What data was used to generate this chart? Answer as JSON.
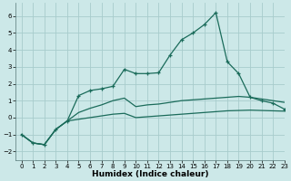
{
  "background_color": "#cce8e8",
  "grid_color": "#a8cccc",
  "line_color": "#1a6b5a",
  "x_label": "Humidex (Indice chaleur)",
  "xlim": [
    -0.5,
    23
  ],
  "ylim": [
    -2.5,
    6.8
  ],
  "yticks": [
    -2,
    -1,
    0,
    1,
    2,
    3,
    4,
    5,
    6
  ],
  "xticks": [
    0,
    1,
    2,
    3,
    4,
    5,
    6,
    7,
    8,
    9,
    10,
    11,
    12,
    13,
    14,
    15,
    16,
    17,
    18,
    19,
    20,
    21,
    22,
    23
  ],
  "series_peaked_x": [
    0,
    1,
    2,
    3,
    4,
    5,
    6,
    7,
    8,
    9,
    10,
    11,
    12,
    13,
    14,
    15,
    16,
    17,
    18,
    19,
    20,
    21,
    22,
    23
  ],
  "series_peaked_y": [
    -1.0,
    -1.5,
    -1.6,
    -0.7,
    -0.2,
    1.3,
    1.6,
    1.7,
    1.85,
    2.85,
    2.6,
    2.6,
    2.65,
    3.7,
    4.6,
    5.0,
    5.5,
    6.2,
    3.3,
    2.6,
    1.2,
    1.0,
    0.85,
    0.5
  ],
  "series_mid_x": [
    0,
    1,
    2,
    3,
    4,
    5,
    6,
    7,
    8,
    9,
    10,
    11,
    12,
    13,
    14,
    15,
    16,
    17,
    18,
    19,
    20,
    21,
    22,
    23
  ],
  "series_mid_y": [
    -1.0,
    -1.5,
    -1.6,
    -0.7,
    -0.2,
    0.3,
    0.55,
    0.75,
    1.0,
    1.15,
    0.65,
    0.75,
    0.8,
    0.9,
    1.0,
    1.05,
    1.1,
    1.15,
    1.2,
    1.25,
    1.2,
    1.1,
    1.0,
    0.9
  ],
  "series_low_x": [
    0,
    1,
    2,
    3,
    4,
    5,
    6,
    7,
    8,
    9,
    10,
    11,
    12,
    13,
    14,
    15,
    16,
    17,
    18,
    19,
    20,
    21,
    22,
    23
  ],
  "series_low_y": [
    -1.0,
    -1.5,
    -1.6,
    -0.7,
    -0.2,
    -0.1,
    0.0,
    0.1,
    0.2,
    0.25,
    0.0,
    0.05,
    0.1,
    0.15,
    0.2,
    0.25,
    0.3,
    0.35,
    0.4,
    0.42,
    0.44,
    0.42,
    0.4,
    0.38
  ]
}
